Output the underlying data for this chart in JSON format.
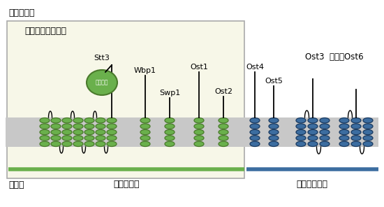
{
  "title_top": "小胞体内腔",
  "title_bottom": "細胞質",
  "box_label": "共通サブユニット",
  "label_essential": "生育に必須",
  "label_nonessential": "生育に非必須",
  "catalytic": "触媒部位",
  "green_color": "#6ab04c",
  "green_dark": "#4a7a2c",
  "green_outline": "#3a6a1c",
  "blue_color": "#3c6da0",
  "blue_dark": "#1a3a60",
  "box_fill": "#f7f7e8",
  "box_edge": "#aaaaaa",
  "mem_color": "#c8c8c8",
  "background": "#ffffff"
}
